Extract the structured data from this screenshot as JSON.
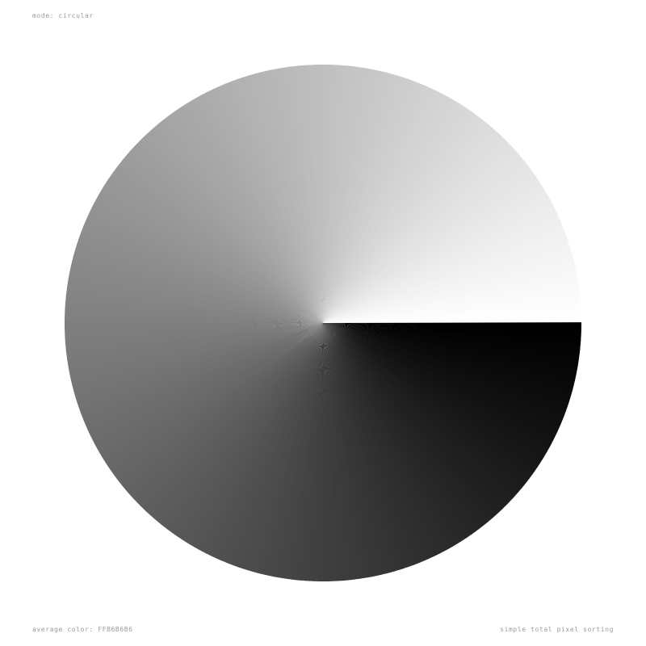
{
  "mode_label": "mode: circular",
  "average_color_label": "average color: FFB6B6B6",
  "algorithm_label": "simple total pixel sorting",
  "artwork": {
    "shape": "circle",
    "background_color": "#FFFFFF",
    "gradient_start_color": "#FFFFFF",
    "gradient_end_color": "#000000",
    "seam_direction": "right"
  }
}
